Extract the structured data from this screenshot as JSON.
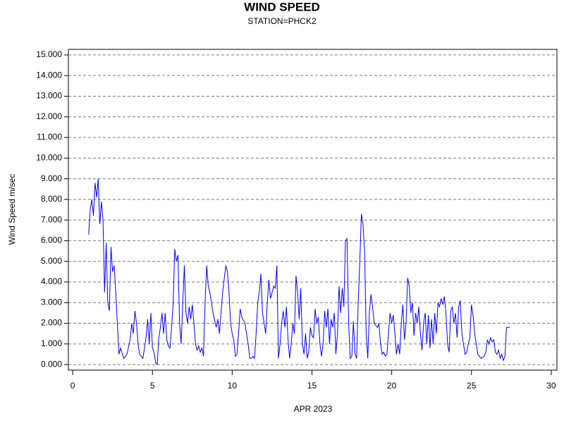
{
  "chart_data": {
    "type": "line",
    "title": "WIND SPEED",
    "subtitle": "STATION=PHCK2",
    "xlabel": "APR 2023",
    "ylabel": "Wind Speed m/sec",
    "color": "#0000ff",
    "grid": true,
    "xlim": [
      -0.27,
      30.36
    ],
    "ylim": [
      -0.27,
      15.27
    ],
    "xticks": [
      0,
      5,
      10,
      15,
      20,
      25,
      30
    ],
    "yticks": [
      {
        "value": 0,
        "label": "0.000"
      },
      {
        "value": 1,
        "label": "1.000"
      },
      {
        "value": 2,
        "label": "2.000"
      },
      {
        "value": 3,
        "label": "3.000"
      },
      {
        "value": 4,
        "label": "4.000"
      },
      {
        "value": 5,
        "label": "5.000"
      },
      {
        "value": 6,
        "label": "6.000"
      },
      {
        "value": 7,
        "label": "7.000"
      },
      {
        "value": 8,
        "label": "8.000"
      },
      {
        "value": 9,
        "label": "9.000"
      },
      {
        "value": 10,
        "label": "10.000"
      },
      {
        "value": 11,
        "label": "11.000"
      },
      {
        "value": 12,
        "label": "12.000"
      },
      {
        "value": 13,
        "label": "13.000"
      },
      {
        "value": 14,
        "label": "14.000"
      },
      {
        "value": 15,
        "label": "15.000"
      }
    ],
    "x": [
      1.0,
      1.1,
      1.2,
      1.3,
      1.4,
      1.5,
      1.6,
      1.7,
      1.8,
      1.9,
      2.0,
      2.1,
      2.2,
      2.3,
      2.4,
      2.5,
      2.6,
      2.7,
      2.8,
      2.9,
      3.0,
      3.2,
      3.4,
      3.6,
      3.7,
      3.8,
      3.9,
      4.0,
      4.1,
      4.2,
      4.4,
      4.6,
      4.7,
      4.8,
      4.9,
      5.0,
      5.1,
      5.2,
      5.3,
      5.4,
      5.5,
      5.6,
      5.7,
      5.8,
      5.9,
      6.0,
      6.1,
      6.2,
      6.3,
      6.4,
      6.5,
      6.6,
      6.7,
      6.8,
      6.9,
      7.0,
      7.1,
      7.2,
      7.3,
      7.4,
      7.5,
      7.6,
      7.7,
      7.8,
      7.9,
      8.0,
      8.1,
      8.2,
      8.3,
      8.4,
      8.5,
      8.6,
      8.8,
      9.0,
      9.1,
      9.2,
      9.4,
      9.6,
      9.7,
      9.8,
      9.9,
      10.0,
      10.1,
      10.2,
      10.3,
      10.4,
      10.5,
      10.6,
      10.8,
      11.0,
      11.1,
      11.2,
      11.3,
      11.4,
      11.5,
      11.6,
      11.7,
      11.8,
      11.9,
      12.0,
      12.1,
      12.2,
      12.3,
      12.4,
      12.5,
      12.6,
      12.7,
      12.8,
      12.9,
      13.0,
      13.1,
      13.2,
      13.3,
      13.4,
      13.5,
      13.6,
      13.7,
      13.8,
      13.9,
      14.0,
      14.1,
      14.2,
      14.3,
      14.4,
      14.5,
      14.6,
      14.7,
      14.8,
      14.9,
      15.0,
      15.1,
      15.2,
      15.3,
      15.4,
      15.5,
      15.6,
      15.7,
      15.8,
      15.9,
      16.0,
      16.1,
      16.2,
      16.3,
      16.4,
      16.5,
      16.6,
      16.7,
      16.8,
      16.9,
      17.0,
      17.1,
      17.2,
      17.3,
      17.4,
      17.5,
      17.6,
      17.7,
      17.8,
      17.9,
      18.0,
      18.1,
      18.2,
      18.3,
      18.4,
      18.5,
      18.6,
      18.7,
      18.8,
      18.9,
      19.0,
      19.1,
      19.2,
      19.3,
      19.4,
      19.5,
      19.6,
      19.7,
      19.8,
      19.9,
      20.0,
      20.1,
      20.2,
      20.3,
      20.4,
      20.5,
      20.6,
      20.7,
      20.8,
      20.9,
      21.0,
      21.1,
      21.2,
      21.3,
      21.4,
      21.5,
      21.6,
      21.7,
      21.8,
      21.9,
      22.0,
      22.1,
      22.2,
      22.3,
      22.4,
      22.5,
      22.6,
      22.7,
      22.8,
      22.9,
      23.0,
      23.1,
      23.2,
      23.3,
      23.4,
      23.5,
      23.6,
      23.7,
      23.8,
      23.9,
      24.0,
      24.1,
      24.2,
      24.3,
      24.4,
      24.5,
      24.6,
      24.7,
      24.8,
      24.9,
      25.0,
      25.1,
      25.2,
      25.3,
      25.4,
      25.6,
      25.8,
      25.9,
      26.0,
      26.1,
      26.2,
      26.3,
      26.4,
      26.5,
      26.6,
      26.7,
      26.8,
      26.9,
      27.0,
      27.1,
      27.2,
      27.4
    ],
    "values": [
      6.3,
      7.5,
      8.0,
      7.2,
      8.8,
      8.1,
      9.0,
      6.8,
      7.9,
      7.0,
      3.5,
      5.9,
      3.0,
      2.6,
      5.7,
      4.5,
      4.8,
      3.5,
      2.0,
      0.5,
      0.8,
      0.3,
      0.5,
      1.2,
      2.0,
      1.5,
      2.6,
      2.0,
      1.0,
      0.5,
      0.3,
      1.3,
      2.2,
      1.0,
      2.5,
      0.8,
      0.6,
      0.1,
      0.0,
      1.3,
      1.8,
      2.5,
      1.5,
      2.5,
      1.2,
      0.9,
      0.8,
      1.8,
      3.0,
      5.6,
      5.0,
      5.3,
      2.0,
      1.0,
      3.0,
      4.8,
      2.5,
      2.0,
      2.8,
      2.2,
      2.9,
      2.0,
      1.0,
      0.7,
      0.9,
      0.6,
      0.8,
      0.4,
      3.0,
      4.8,
      3.8,
      3.5,
      2.5,
      1.8,
      2.2,
      1.5,
      3.5,
      4.8,
      4.5,
      3.5,
      2.0,
      1.5,
      1.2,
      0.4,
      0.5,
      1.5,
      2.7,
      2.3,
      2.0,
      1.0,
      0.3,
      0.3,
      0.4,
      0.3,
      1.5,
      3.0,
      3.5,
      4.4,
      2.5,
      2.0,
      1.5,
      3.0,
      4.1,
      3.2,
      3.5,
      3.8,
      3.7,
      4.8,
      0.3,
      1.0,
      2.0,
      2.6,
      1.8,
      2.8,
      1.2,
      0.3,
      1.0,
      2.0,
      1.5,
      4.3,
      3.5,
      2.2,
      3.7,
      1.0,
      0.5,
      1.5,
      0.3,
      0.6,
      1.8,
      1.4,
      1.3,
      2.7,
      2.0,
      2.3,
      1.0,
      0.4,
      1.0,
      2.6,
      1.8,
      2.7,
      1.0,
      2.2,
      1.8,
      2.5,
      0.5,
      1.5,
      3.8,
      2.5,
      3.7,
      2.8,
      6.0,
      6.1,
      2.0,
      0.3,
      0.4,
      2.1,
      0.5,
      0.3,
      3.0,
      5.0,
      7.3,
      6.8,
      5.5,
      1.5,
      0.3,
      2.5,
      3.4,
      2.8,
      2.0,
      1.9,
      1.8,
      2.0,
      1.0,
      0.5,
      0.6,
      0.4,
      0.5,
      1.5,
      2.5,
      2.0,
      2.4,
      1.5,
      0.5,
      1.0,
      0.5,
      2.0,
      2.9,
      1.2,
      2.0,
      4.2,
      3.8,
      2.5,
      3.0,
      1.4,
      2.5,
      2.0,
      2.8,
      1.5,
      0.7,
      2.0,
      2.5,
      1.0,
      2.4,
      0.8,
      2.2,
      1.0,
      2.5,
      1.5,
      3.0,
      2.8,
      3.2,
      2.9,
      3.3,
      2.5,
      1.0,
      0.6,
      2.6,
      2.8,
      2.0,
      2.5,
      1.3,
      2.8,
      3.1,
      1.5,
      1.0,
      0.5,
      0.6,
      1.0,
      1.3,
      2.9,
      2.4,
      1.5,
      1.0,
      0.5,
      0.3,
      0.4,
      0.6,
      1.2,
      1.0,
      1.3,
      1.1,
      1.2,
      0.6,
      0.5,
      0.7,
      0.3,
      0.5,
      0.2,
      0.4,
      1.8,
      1.8
    ]
  }
}
